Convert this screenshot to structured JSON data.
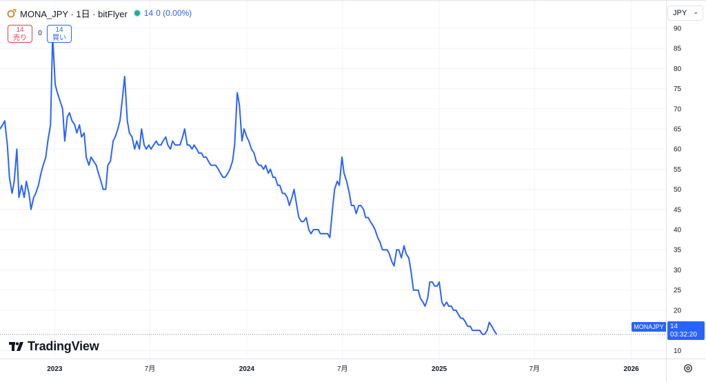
{
  "header": {
    "title": "MONA_JPY · 1日 · bitFlyer",
    "price": "14",
    "change": "0 (0.00%)"
  },
  "trade": {
    "sell_price": "14",
    "sell_label": "売り",
    "spread": "0",
    "buy_price": "14",
    "buy_label": "買い"
  },
  "currency_button": {
    "label": "JPY"
  },
  "price_label": {
    "symbol": "MONAJPY",
    "value": "14",
    "countdown": "03:32:20"
  },
  "logo": {
    "text": "TradingView"
  },
  "icons": [
    "monacoin-icon",
    "status-dot-icon",
    "chevron-down-icon",
    "tradingview-logo-icon",
    "settings-gear-icon"
  ],
  "colors": {
    "line": "#2962ff",
    "up": "#22ab94",
    "sell": "#f23645",
    "buy": "#2962ff"
  },
  "chart_data": {
    "type": "line",
    "ylim": [
      8,
      97
    ],
    "y_ticks": [
      10,
      15,
      20,
      25,
      30,
      35,
      40,
      45,
      50,
      55,
      60,
      65,
      70,
      75,
      80,
      85,
      90
    ],
    "x_ticks": [
      {
        "label": "2023",
        "x": "2023-01-01",
        "major": true
      },
      {
        "label": "7月",
        "x": "2023-07-01",
        "major": false
      },
      {
        "label": "2024",
        "x": "2024-01-01",
        "major": true
      },
      {
        "label": "7月",
        "x": "2024-07-01",
        "major": false
      },
      {
        "label": "2025",
        "x": "2025-01-01",
        "major": true
      },
      {
        "label": "7月",
        "x": "2025-07-01",
        "major": false
      },
      {
        "label": "2026",
        "x": "2026-01-01",
        "major": true
      }
    ],
    "last_value": 14,
    "series": [
      {
        "points": [
          [
            "2022-09-19",
            65
          ],
          [
            "2022-09-24",
            66
          ],
          [
            "2022-09-28",
            67
          ],
          [
            "2022-10-03",
            61
          ],
          [
            "2022-10-07",
            53
          ],
          [
            "2022-10-12",
            49
          ],
          [
            "2022-10-16",
            52
          ],
          [
            "2022-10-21",
            60
          ],
          [
            "2022-10-25",
            48
          ],
          [
            "2022-10-30",
            51
          ],
          [
            "2022-11-04",
            48
          ],
          [
            "2022-11-08",
            52
          ],
          [
            "2022-11-13",
            49
          ],
          [
            "2022-11-17",
            45
          ],
          [
            "2022-11-22",
            48
          ],
          [
            "2022-11-26",
            49
          ],
          [
            "2022-12-01",
            51
          ],
          [
            "2022-12-06",
            54
          ],
          [
            "2022-12-10",
            56
          ],
          [
            "2022-12-15",
            58
          ],
          [
            "2022-12-19",
            62
          ],
          [
            "2022-12-24",
            66
          ],
          [
            "2022-12-28",
            88
          ],
          [
            "2023-01-02",
            76
          ],
          [
            "2023-01-06",
            74
          ],
          [
            "2023-01-11",
            72
          ],
          [
            "2023-01-16",
            70
          ],
          [
            "2023-01-20",
            62
          ],
          [
            "2023-01-25",
            68
          ],
          [
            "2023-01-29",
            69
          ],
          [
            "2023-02-03",
            67
          ],
          [
            "2023-02-08",
            66
          ],
          [
            "2023-02-12",
            64
          ],
          [
            "2023-02-17",
            66
          ],
          [
            "2023-02-21",
            63
          ],
          [
            "2023-02-26",
            64
          ],
          [
            "2023-03-02",
            58
          ],
          [
            "2023-03-07",
            56
          ],
          [
            "2023-03-11",
            58
          ],
          [
            "2023-03-16",
            57
          ],
          [
            "2023-03-21",
            56
          ],
          [
            "2023-03-25",
            54
          ],
          [
            "2023-03-30",
            52
          ],
          [
            "2023-04-03",
            50
          ],
          [
            "2023-04-08",
            50
          ],
          [
            "2023-04-12",
            56
          ],
          [
            "2023-04-17",
            57
          ],
          [
            "2023-04-22",
            62
          ],
          [
            "2023-04-26",
            63
          ],
          [
            "2023-05-01",
            65
          ],
          [
            "2023-05-05",
            67
          ],
          [
            "2023-05-10",
            73
          ],
          [
            "2023-05-14",
            78
          ],
          [
            "2023-05-19",
            67
          ],
          [
            "2023-05-23",
            64
          ],
          [
            "2023-05-28",
            63
          ],
          [
            "2023-06-02",
            60
          ],
          [
            "2023-06-06",
            62
          ],
          [
            "2023-06-11",
            60
          ],
          [
            "2023-06-15",
            65
          ],
          [
            "2023-06-20",
            61
          ],
          [
            "2023-06-24",
            60
          ],
          [
            "2023-06-29",
            61
          ],
          [
            "2023-07-03",
            60
          ],
          [
            "2023-07-08",
            61
          ],
          [
            "2023-07-13",
            62
          ],
          [
            "2023-07-17",
            61
          ],
          [
            "2023-07-22",
            61
          ],
          [
            "2023-07-26",
            62
          ],
          [
            "2023-07-31",
            63
          ],
          [
            "2023-08-04",
            61
          ],
          [
            "2023-08-09",
            60
          ],
          [
            "2023-08-13",
            62
          ],
          [
            "2023-08-18",
            61
          ],
          [
            "2023-08-22",
            61
          ],
          [
            "2023-08-27",
            61
          ],
          [
            "2023-09-01",
            63
          ],
          [
            "2023-09-05",
            65
          ],
          [
            "2023-09-10",
            61
          ],
          [
            "2023-09-14",
            61
          ],
          [
            "2023-09-19",
            60
          ],
          [
            "2023-09-23",
            61
          ],
          [
            "2023-09-28",
            60
          ],
          [
            "2023-10-02",
            59
          ],
          [
            "2023-10-07",
            59
          ],
          [
            "2023-10-11",
            58
          ],
          [
            "2023-10-16",
            58
          ],
          [
            "2023-10-20",
            57
          ],
          [
            "2023-10-25",
            56
          ],
          [
            "2023-10-30",
            56
          ],
          [
            "2023-11-03",
            56
          ],
          [
            "2023-11-08",
            55
          ],
          [
            "2023-11-12",
            54
          ],
          [
            "2023-11-17",
            53
          ],
          [
            "2023-11-21",
            53
          ],
          [
            "2023-11-26",
            54
          ],
          [
            "2023-11-30",
            55
          ],
          [
            "2023-12-05",
            57
          ],
          [
            "2023-12-09",
            61
          ],
          [
            "2023-12-14",
            74
          ],
          [
            "2023-12-18",
            71
          ],
          [
            "2023-12-23",
            62
          ],
          [
            "2023-12-27",
            65
          ],
          [
            "2024-01-01",
            63
          ],
          [
            "2024-01-05",
            62
          ],
          [
            "2024-01-10",
            60
          ],
          [
            "2024-01-15",
            59
          ],
          [
            "2024-01-19",
            57
          ],
          [
            "2024-01-24",
            56
          ],
          [
            "2024-01-28",
            56
          ],
          [
            "2024-02-02",
            55
          ],
          [
            "2024-02-06",
            56
          ],
          [
            "2024-02-11",
            54
          ],
          [
            "2024-02-15",
            55
          ],
          [
            "2024-02-20",
            53
          ],
          [
            "2024-02-24",
            53
          ],
          [
            "2024-02-29",
            51
          ],
          [
            "2024-03-04",
            51
          ],
          [
            "2024-03-09",
            49
          ],
          [
            "2024-03-13",
            49
          ],
          [
            "2024-03-18",
            48
          ],
          [
            "2024-03-22",
            46
          ],
          [
            "2024-03-27",
            48
          ],
          [
            "2024-03-31",
            50
          ],
          [
            "2024-04-05",
            46
          ],
          [
            "2024-04-09",
            43
          ],
          [
            "2024-04-14",
            42
          ],
          [
            "2024-04-18",
            42
          ],
          [
            "2024-04-23",
            43
          ],
          [
            "2024-04-28",
            40
          ],
          [
            "2024-05-02",
            39
          ],
          [
            "2024-05-07",
            40
          ],
          [
            "2024-05-11",
            40
          ],
          [
            "2024-05-16",
            40
          ],
          [
            "2024-05-20",
            39
          ],
          [
            "2024-05-25",
            39
          ],
          [
            "2024-05-29",
            39
          ],
          [
            "2024-06-03",
            39
          ],
          [
            "2024-06-07",
            38
          ],
          [
            "2024-06-12",
            45
          ],
          [
            "2024-06-16",
            50
          ],
          [
            "2024-06-21",
            52
          ],
          [
            "2024-06-25",
            51
          ],
          [
            "2024-06-30",
            58
          ],
          [
            "2024-07-04",
            54
          ],
          [
            "2024-07-09",
            52
          ],
          [
            "2024-07-14",
            49
          ],
          [
            "2024-07-18",
            46
          ],
          [
            "2024-07-23",
            46
          ],
          [
            "2024-07-27",
            44
          ],
          [
            "2024-08-01",
            46
          ],
          [
            "2024-08-05",
            46
          ],
          [
            "2024-08-10",
            45
          ],
          [
            "2024-08-14",
            43
          ],
          [
            "2024-08-19",
            43
          ],
          [
            "2024-08-23",
            42
          ],
          [
            "2024-08-28",
            41
          ],
          [
            "2024-09-01",
            40
          ],
          [
            "2024-09-06",
            38
          ],
          [
            "2024-09-10",
            37
          ],
          [
            "2024-09-15",
            35
          ],
          [
            "2024-09-19",
            35
          ],
          [
            "2024-09-24",
            35
          ],
          [
            "2024-09-28",
            34
          ],
          [
            "2024-10-03",
            32
          ],
          [
            "2024-10-07",
            31
          ],
          [
            "2024-10-12",
            35
          ],
          [
            "2024-10-16",
            35
          ],
          [
            "2024-10-21",
            33
          ],
          [
            "2024-10-26",
            36
          ],
          [
            "2024-10-30",
            34
          ],
          [
            "2024-11-04",
            33
          ],
          [
            "2024-11-08",
            30
          ],
          [
            "2024-11-13",
            25
          ],
          [
            "2024-11-17",
            25
          ],
          [
            "2024-11-22",
            25
          ],
          [
            "2024-11-26",
            23
          ],
          [
            "2024-12-01",
            22
          ],
          [
            "2024-12-05",
            21
          ],
          [
            "2024-12-10",
            23
          ],
          [
            "2024-12-14",
            27
          ],
          [
            "2024-12-19",
            27
          ],
          [
            "2024-12-23",
            26
          ],
          [
            "2024-12-28",
            26
          ],
          [
            "2025-01-01",
            27
          ],
          [
            "2025-01-06",
            22
          ],
          [
            "2025-01-10",
            21
          ],
          [
            "2025-01-15",
            22
          ],
          [
            "2025-01-19",
            21
          ],
          [
            "2025-01-24",
            21
          ],
          [
            "2025-01-28",
            20
          ],
          [
            "2025-02-02",
            20
          ],
          [
            "2025-02-06",
            19
          ],
          [
            "2025-02-11",
            18
          ],
          [
            "2025-02-15",
            18
          ],
          [
            "2025-02-20",
            17
          ],
          [
            "2025-02-24",
            16
          ],
          [
            "2025-03-01",
            16
          ],
          [
            "2025-03-05",
            15
          ],
          [
            "2025-03-10",
            15
          ],
          [
            "2025-03-14",
            15
          ],
          [
            "2025-03-19",
            15
          ],
          [
            "2025-03-24",
            14
          ],
          [
            "2025-03-28",
            14
          ],
          [
            "2025-04-02",
            15
          ],
          [
            "2025-04-06",
            17
          ],
          [
            "2025-04-11",
            16
          ],
          [
            "2025-04-15",
            15
          ],
          [
            "2025-04-20",
            14
          ]
        ]
      }
    ]
  }
}
